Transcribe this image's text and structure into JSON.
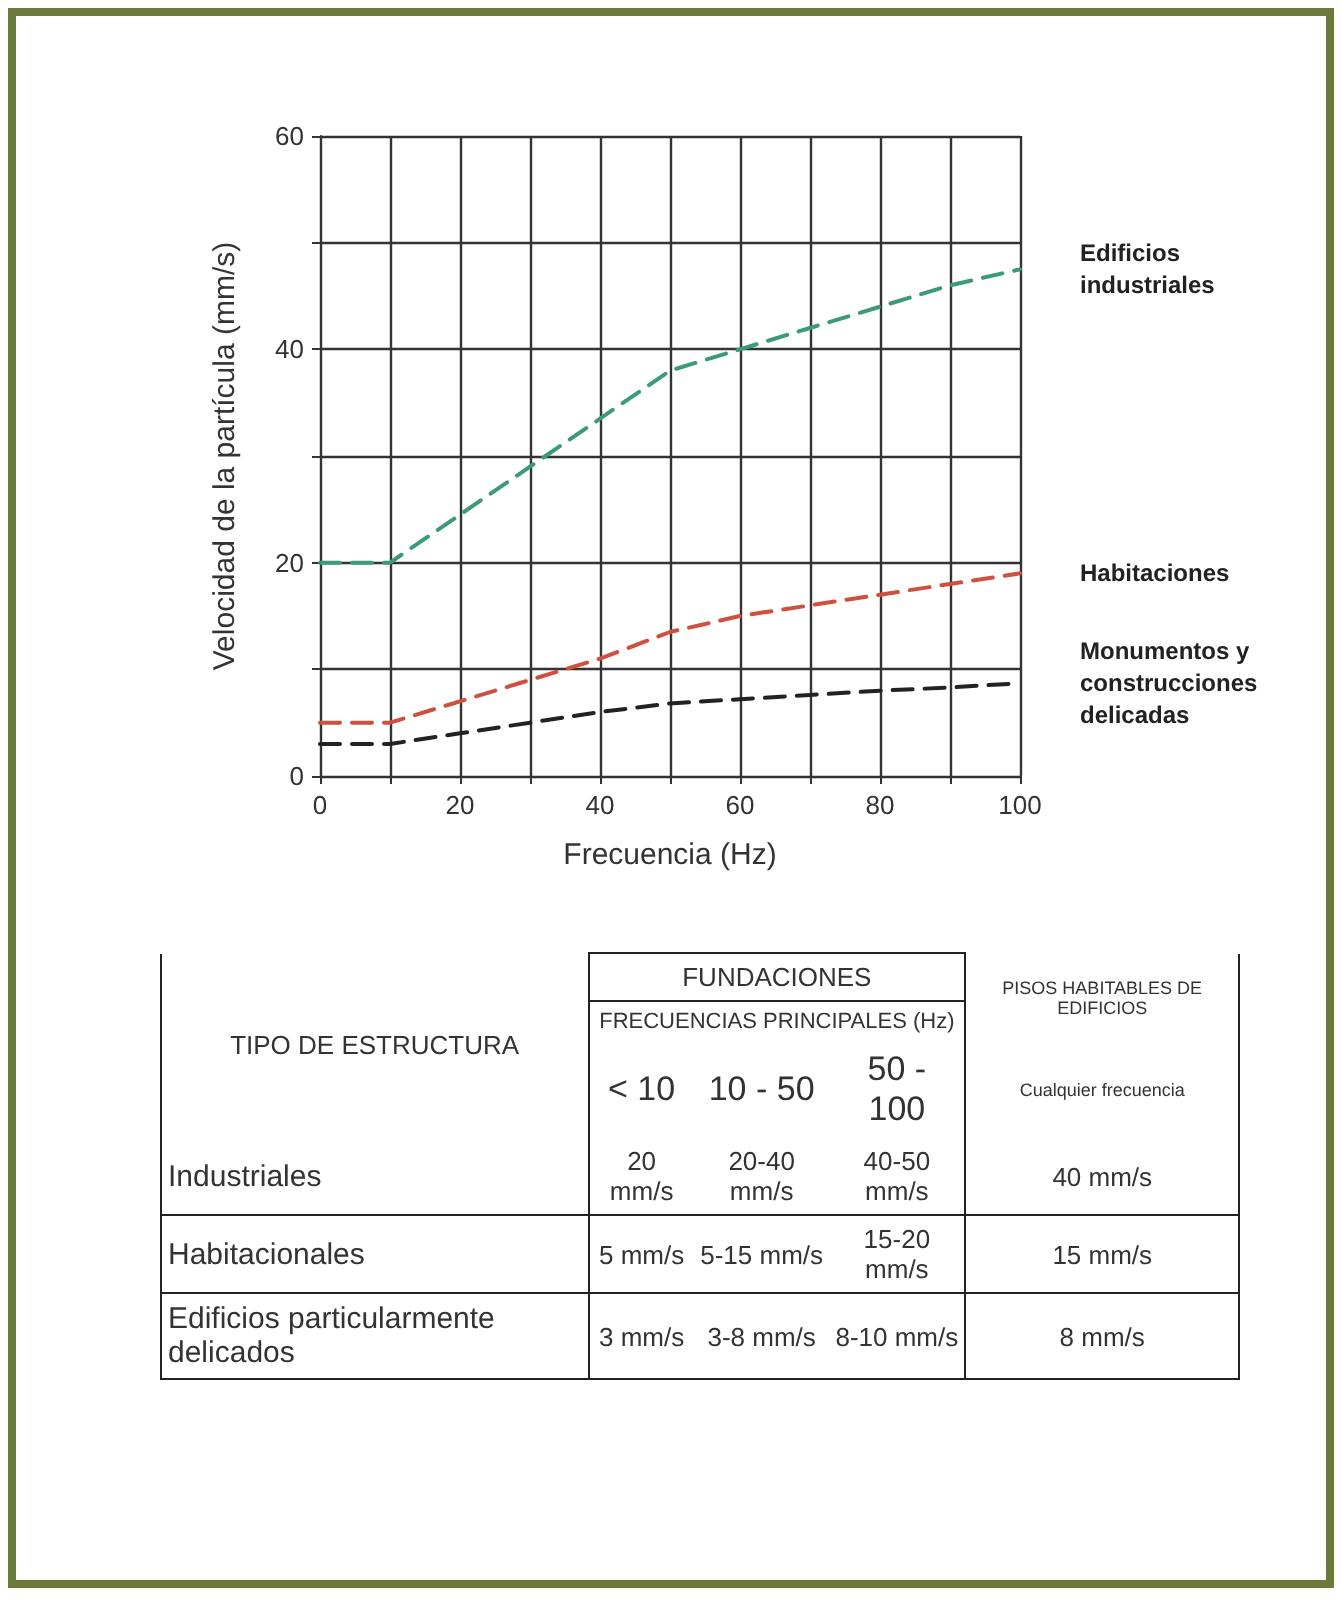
{
  "chart_data": [
    {
      "type": "line",
      "xlabel": "Frecuencia (Hz)",
      "ylabel": "Velocidad de la partícula (mm/s)",
      "x": [
        0,
        10,
        20,
        30,
        40,
        50,
        60,
        70,
        80,
        90,
        100
      ],
      "series": [
        {
          "name": "Edificios industriales",
          "color": "#3a9a7a",
          "values": [
            20,
            20,
            24.5,
            29,
            33.5,
            38,
            40,
            42,
            44,
            46,
            47.5
          ]
        },
        {
          "name": "Habitaciones",
          "color": "#d05040",
          "values": [
            5,
            5,
            7,
            9,
            11,
            13.5,
            15,
            16,
            17,
            18,
            19
          ]
        },
        {
          "name": "Monumentos y construcciones delicadas",
          "color": "#222222",
          "values": [
            3,
            3,
            4,
            5,
            6,
            6.8,
            7.2,
            7.6,
            8,
            8.3,
            8.7
          ]
        }
      ],
      "xlim": [
        0,
        100
      ],
      "xticks": [
        0,
        {
          "value": 10,
          "label": null
        },
        20,
        {
          "value": 30,
          "label": null
        },
        40,
        {
          "value": 50,
          "label": null
        },
        60,
        {
          "value": 70,
          "label": null
        },
        80,
        {
          "value": 90,
          "label": null
        },
        100
      ],
      "ylim": [
        0,
        60
      ],
      "yticks": [
        0,
        {
          "value": 10,
          "label": null
        },
        20,
        {
          "value": 30,
          "label": null
        },
        40,
        {
          "value": 50,
          "label": null
        },
        60
      ],
      "grid": true,
      "legend": false,
      "marker": "none",
      "line_style": "dashed"
    },
    {
      "type": "other",
      "annotations": [
        "TIPO DE ESTRUCTURA",
        "FUNDACIONES",
        "FRECUENCIAS PRINCIPALES (Hz)",
        "PISOS HABITABLES DE EDIFICIOS",
        "< 10",
        "10 - 50",
        "50 - 100",
        "Cualquier frecuencia",
        "Industriales",
        "20 mm/s",
        "20-40 mm/s",
        "40-50 mm/s",
        "40 mm/s",
        "Habitacionales",
        "5 mm/s",
        "5-15 mm/s",
        "15-20 mm/s",
        "15 mm/s",
        "Edificios particularmente delicados",
        "3 mm/s",
        "3-8 mm/s",
        "8-10 mm/s",
        "8 mm/s"
      ]
    }
  ]
}
